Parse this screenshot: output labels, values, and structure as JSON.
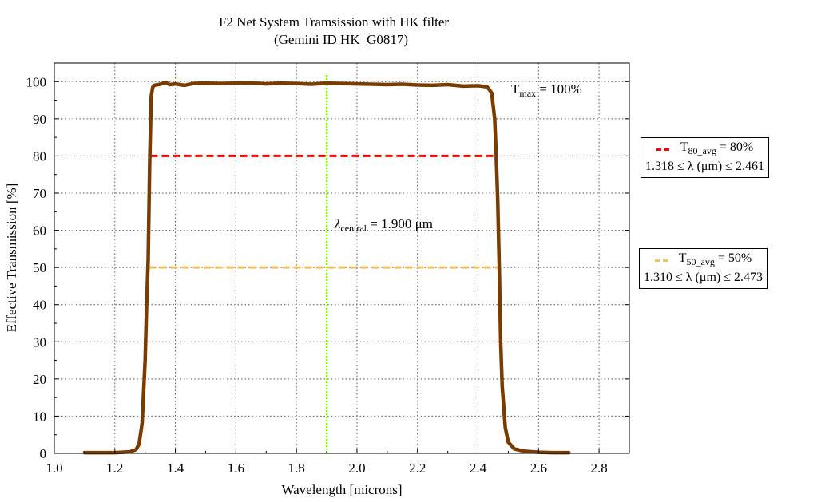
{
  "chart_data": {
    "type": "line",
    "title": "F2 Net System Tramsission with HK filter",
    "subtitle": "(Gemini ID HK_G0817)",
    "xlabel": "Wavelength [microns]",
    "ylabel": "Effective Transmission [%]",
    "xlim": [
      1.0,
      2.9
    ],
    "ylim": [
      0,
      105
    ],
    "xticks": [
      1.0,
      1.2,
      1.4,
      1.6,
      1.8,
      2.0,
      2.2,
      2.4,
      2.6,
      2.8
    ],
    "xtick_labels": [
      "1.0",
      "1.2",
      "1.4",
      "1.6",
      "1.8",
      "2.0",
      "2.2",
      "2.4",
      "2.6",
      "2.8"
    ],
    "yticks": [
      0,
      10,
      20,
      30,
      40,
      50,
      60,
      70,
      80,
      90,
      100
    ],
    "ytick_labels": [
      "0",
      "10",
      "20",
      "30",
      "40",
      "50",
      "60",
      "70",
      "80",
      "90",
      "100"
    ],
    "grid": true,
    "series": [
      {
        "color": "#7a3b00",
        "x": [
          1.1,
          1.15,
          1.2,
          1.25,
          1.27,
          1.28,
          1.29,
          1.3,
          1.305,
          1.31,
          1.315,
          1.32,
          1.325,
          1.33,
          1.35,
          1.37,
          1.38,
          1.4,
          1.43,
          1.46,
          1.5,
          1.55,
          1.6,
          1.65,
          1.7,
          1.75,
          1.8,
          1.85,
          1.9,
          1.95,
          2.0,
          2.05,
          2.1,
          2.15,
          2.2,
          2.25,
          2.3,
          2.35,
          2.4,
          2.43,
          2.445,
          2.455,
          2.46,
          2.465,
          2.47,
          2.475,
          2.48,
          2.49,
          2.5,
          2.52,
          2.55,
          2.6,
          2.65,
          2.7
        ],
        "y": [
          0.2,
          0.2,
          0.2,
          0.4,
          1.0,
          2.5,
          8,
          25,
          40,
          52,
          78,
          96,
          98.5,
          99.0,
          99.3,
          99.8,
          99.2,
          99.4,
          99.0,
          99.5,
          99.6,
          99.5,
          99.6,
          99.7,
          99.4,
          99.6,
          99.5,
          99.3,
          99.6,
          99.5,
          99.4,
          99.3,
          99.2,
          99.3,
          99.1,
          99.0,
          99.2,
          98.8,
          98.9,
          98.6,
          97,
          90,
          80,
          68,
          50,
          30,
          18,
          7,
          3,
          1.2,
          0.6,
          0.3,
          0.2,
          0.2
        ]
      }
    ],
    "reference_lines": [
      {
        "kind": "horizontal",
        "y": 80,
        "x_start": 1.318,
        "x_end": 2.461,
        "color": "#ff0000",
        "style": "dashed"
      },
      {
        "kind": "horizontal",
        "y": 50,
        "x_start": 1.31,
        "x_end": 2.473,
        "color": "#f5c05a",
        "style": "dashed"
      },
      {
        "kind": "vertical",
        "x": 1.9,
        "y_start": 0,
        "y_end": 102,
        "color": "#7fff00",
        "style": "dotted"
      }
    ],
    "annotations": {
      "tmax": {
        "main": "T",
        "sub": "max",
        "rest": " = 100%"
      },
      "central": {
        "main": "λ",
        "sub": "central",
        "rest": " = 1.900 μm"
      }
    },
    "legends": [
      {
        "color": "#ff0000",
        "line1_main": "T",
        "line1_sub": "80_avg",
        "line1_rest": " = 80%",
        "line2": "1.318 ≤ λ (μm) ≤ 2.461"
      },
      {
        "color": "#f5c05a",
        "line1_main": "T",
        "line1_sub": "50_avg",
        "line1_rest": " = 50%",
        "line2": "1.310 ≤ λ (μm) ≤ 2.473"
      }
    ]
  }
}
